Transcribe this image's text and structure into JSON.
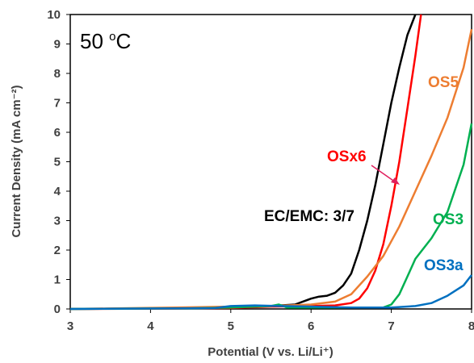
{
  "chart_data": {
    "type": "line",
    "title": "",
    "xlabel": "Potential (V vs. Li/Li⁺)",
    "ylabel": "Current Density (mA cm⁻²)",
    "xlim": [
      3,
      8
    ],
    "ylim": [
      0,
      10
    ],
    "xticks": [
      "3",
      "4",
      "5",
      "6",
      "7",
      "8"
    ],
    "yticks": [
      "0",
      "1",
      "2",
      "3",
      "4",
      "5",
      "6",
      "7",
      "8",
      "9",
      "10"
    ],
    "grid": false,
    "annotation": {
      "main": "50 ",
      "sup": "o",
      "unit": "C"
    },
    "series": [
      {
        "name": "EC/EMC: 3/7",
        "color": "#000000",
        "points": [
          [
            3.0,
            0.0
          ],
          [
            4.0,
            0.02
          ],
          [
            5.0,
            0.05
          ],
          [
            5.5,
            0.1
          ],
          [
            5.8,
            0.15
          ],
          [
            6.0,
            0.35
          ],
          [
            6.1,
            0.42
          ],
          [
            6.2,
            0.45
          ],
          [
            6.3,
            0.55
          ],
          [
            6.4,
            0.8
          ],
          [
            6.5,
            1.2
          ],
          [
            6.6,
            2.0
          ],
          [
            6.7,
            3.0
          ],
          [
            6.8,
            4.2
          ],
          [
            6.9,
            5.6
          ],
          [
            7.0,
            7.0
          ],
          [
            7.1,
            8.2
          ],
          [
            7.2,
            9.3
          ],
          [
            7.3,
            10.0
          ]
        ]
      },
      {
        "name": "OSx6",
        "color": "#ff0000",
        "points": [
          [
            3.0,
            0.0
          ],
          [
            4.0,
            0.01
          ],
          [
            5.0,
            0.03
          ],
          [
            5.5,
            0.08
          ],
          [
            6.0,
            0.1
          ],
          [
            6.3,
            0.12
          ],
          [
            6.5,
            0.2
          ],
          [
            6.6,
            0.35
          ],
          [
            6.7,
            0.7
          ],
          [
            6.8,
            1.3
          ],
          [
            6.9,
            2.2
          ],
          [
            7.0,
            3.5
          ],
          [
            7.1,
            5.0
          ],
          [
            7.2,
            6.8
          ],
          [
            7.3,
            8.6
          ],
          [
            7.37,
            10.0
          ]
        ]
      },
      {
        "name": "OS5",
        "color": "#ed7d31",
        "points": [
          [
            3.0,
            0.0
          ],
          [
            4.3,
            0.05
          ],
          [
            5.0,
            0.08
          ],
          [
            5.5,
            0.1
          ],
          [
            6.0,
            0.15
          ],
          [
            6.3,
            0.25
          ],
          [
            6.5,
            0.5
          ],
          [
            6.7,
            1.1
          ],
          [
            6.9,
            1.8
          ],
          [
            7.1,
            2.8
          ],
          [
            7.3,
            4.0
          ],
          [
            7.5,
            5.2
          ],
          [
            7.7,
            6.5
          ],
          [
            7.9,
            8.2
          ],
          [
            8.0,
            9.5
          ]
        ]
      },
      {
        "name": "OS3",
        "color": "#00b050",
        "points": [
          [
            3.0,
            0.0
          ],
          [
            4.5,
            0.02
          ],
          [
            5.0,
            0.05
          ],
          [
            5.5,
            0.1
          ],
          [
            5.6,
            0.15
          ],
          [
            5.7,
            0.05
          ],
          [
            6.0,
            0.05
          ],
          [
            6.5,
            0.05
          ],
          [
            6.9,
            0.05
          ],
          [
            7.0,
            0.15
          ],
          [
            7.1,
            0.5
          ],
          [
            7.2,
            1.1
          ],
          [
            7.3,
            1.7
          ],
          [
            7.5,
            2.4
          ],
          [
            7.7,
            3.3
          ],
          [
            7.9,
            4.9
          ],
          [
            8.0,
            6.3
          ]
        ]
      },
      {
        "name": "OS3a",
        "color": "#0070c0",
        "points": [
          [
            3.0,
            0.0
          ],
          [
            4.8,
            0.03
          ],
          [
            5.0,
            0.1
          ],
          [
            5.3,
            0.12
          ],
          [
            5.6,
            0.1
          ],
          [
            6.0,
            0.08
          ],
          [
            6.5,
            0.05
          ],
          [
            7.0,
            0.05
          ],
          [
            7.3,
            0.1
          ],
          [
            7.5,
            0.2
          ],
          [
            7.7,
            0.45
          ],
          [
            7.9,
            0.8
          ],
          [
            8.0,
            1.15
          ]
        ]
      }
    ]
  },
  "labels": {
    "ec_emc": "EC/EMC: 3/7",
    "osx6": "OSx6",
    "os5": "OS5",
    "os3": "OS3",
    "os3a": "OS3a"
  }
}
